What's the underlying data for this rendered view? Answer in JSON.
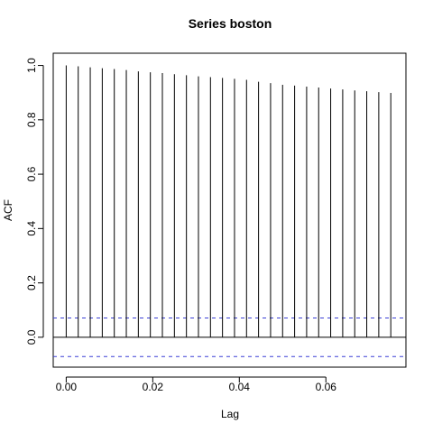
{
  "chart_data": {
    "type": "bar",
    "subtype": "acf-lollipop",
    "title": "Series  boston",
    "xlabel": "Lag",
    "ylabel": "ACF",
    "xlim": [
      -0.003,
      0.0785
    ],
    "ylim": [
      -0.11,
      1.045
    ],
    "xticks": [
      0.0,
      0.02,
      0.04,
      0.06
    ],
    "xtick_labels": [
      "0.00",
      "0.02",
      "0.04",
      "0.06"
    ],
    "yticks": [
      0.0,
      0.2,
      0.4,
      0.6,
      0.8,
      1.0
    ],
    "ytick_labels": [
      "0.0",
      "0.2",
      "0.4",
      "0.6",
      "0.8",
      "1.0"
    ],
    "lags": [
      0.0,
      0.002778,
      0.005556,
      0.008333,
      0.011111,
      0.013889,
      0.016667,
      0.019444,
      0.022222,
      0.025,
      0.027778,
      0.030556,
      0.033333,
      0.036111,
      0.038889,
      0.041667,
      0.044444,
      0.047222,
      0.05,
      0.052778,
      0.055556,
      0.058333,
      0.061111,
      0.063889,
      0.066667,
      0.069444,
      0.072222,
      0.075
    ],
    "acf": [
      1.0,
      0.997,
      0.993,
      0.99,
      0.987,
      0.983,
      0.978,
      0.975,
      0.972,
      0.968,
      0.964,
      0.96,
      0.957,
      0.954,
      0.951,
      0.947,
      0.94,
      0.935,
      0.929,
      0.926,
      0.922,
      0.919,
      0.915,
      0.912,
      0.908,
      0.905,
      0.902,
      0.899
    ],
    "confidence_bound": 0.0708,
    "zero_line": 0.0,
    "grid": false,
    "colors": {
      "bars": "#000000",
      "ci_lines": "#3a3fd6",
      "axes": "#000000",
      "background": "#ffffff"
    }
  }
}
